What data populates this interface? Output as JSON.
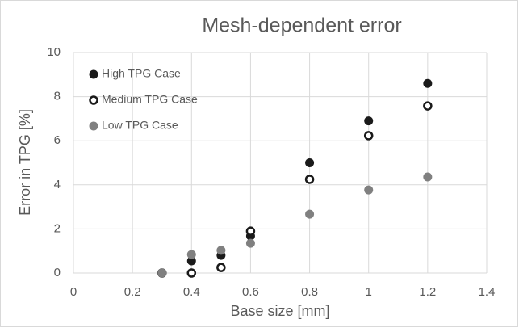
{
  "chart_data": {
    "type": "scatter",
    "title": "Mesh-dependent error",
    "xlabel": "Base size [mm]",
    "ylabel": "Error in TPG [%]",
    "x": [
      0.3,
      0.4,
      0.5,
      0.6,
      0.8,
      1.0,
      1.2
    ],
    "series": [
      {
        "name": "High TPG Case",
        "color": "#1a1a1a",
        "fill": "#1a1a1a",
        "values": [
          0,
          0.55,
          0.8,
          1.68,
          5.0,
          6.9,
          8.6
        ]
      },
      {
        "name": "Medium TPG Case",
        "color": "#1a1a1a",
        "fill": "#ffffff",
        "values": [
          0,
          0,
          0.25,
          1.9,
          4.25,
          6.23,
          7.58
        ]
      },
      {
        "name": "Low TPG Case",
        "color": "#808080",
        "fill": "#808080",
        "values": [
          0,
          0.84,
          1.03,
          1.35,
          2.67,
          3.77,
          4.36
        ]
      }
    ],
    "xlim": [
      0,
      1.4
    ],
    "xticks": [
      0,
      0.2,
      0.4,
      0.6,
      0.8,
      1,
      1.2,
      1.4
    ],
    "ylim": [
      0,
      10
    ],
    "yticks": [
      0,
      2,
      4,
      6,
      8,
      10
    ],
    "grid": true,
    "legend": "upper left"
  }
}
